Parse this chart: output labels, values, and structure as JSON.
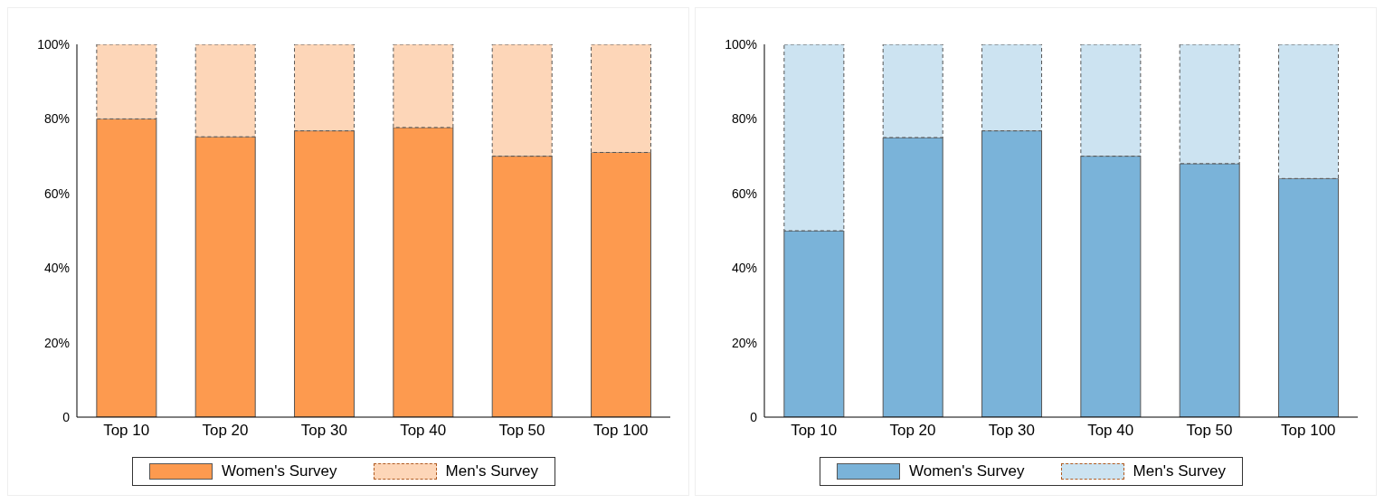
{
  "chart_data": [
    {
      "type": "bar",
      "stacked": true,
      "categories": [
        "Top 10",
        "Top 20",
        "Top 30",
        "Top 40",
        "Top 50",
        "Top 100"
      ],
      "series": [
        {
          "name": "Women's Survey",
          "color": "#fd9a4f",
          "values": [
            80,
            75.2,
            76.8,
            77.7,
            70,
            71
          ]
        },
        {
          "name": "Men's Survey",
          "color": "#fdd6b8",
          "values": [
            20,
            24.8,
            23.2,
            22.3,
            30,
            29
          ]
        }
      ],
      "ylim": [
        0,
        100
      ],
      "yticks": [
        0,
        {
          "value": 20,
          "label": "20%"
        },
        {
          "value": 40,
          "label": "40%"
        },
        {
          "value": 60,
          "label": "60%"
        },
        {
          "value": 80,
          "label": "80%"
        },
        {
          "value": 100,
          "label": "100%"
        }
      ],
      "grid": false,
      "legend": "bottom"
    },
    {
      "type": "bar",
      "stacked": true,
      "categories": [
        "Top 10",
        "Top 20",
        "Top 30",
        "Top 40",
        "Top 50",
        "Top 100"
      ],
      "series": [
        {
          "name": "Women's Survey",
          "color": "#7ab3d9",
          "values": [
            50,
            75,
            76.8,
            70,
            68,
            64
          ]
        },
        {
          "name": "Men's Survey",
          "color": "#cce3f1",
          "values": [
            50,
            25,
            23.2,
            30,
            32,
            36
          ]
        }
      ],
      "ylim": [
        0,
        100
      ],
      "yticks": [
        0,
        {
          "value": 20,
          "label": "20%"
        },
        {
          "value": 40,
          "label": "40%"
        },
        {
          "value": 60,
          "label": "60%"
        },
        {
          "value": 80,
          "label": "80%"
        },
        {
          "value": 100,
          "label": "100%"
        }
      ],
      "grid": false,
      "legend": "bottom"
    }
  ]
}
